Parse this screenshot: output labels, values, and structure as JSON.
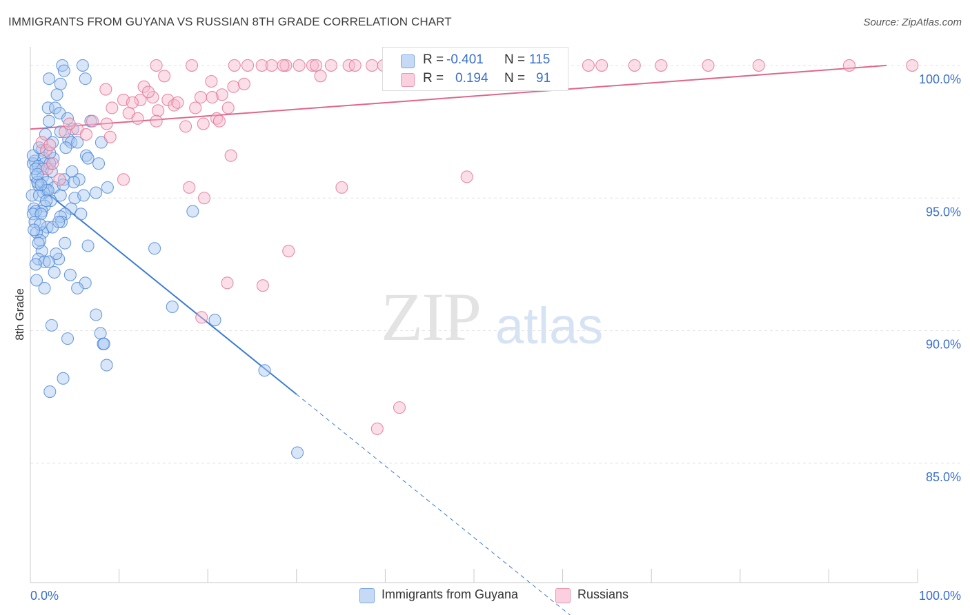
{
  "header": {
    "title": "IMMIGRANTS FROM GUYANA VS RUSSIAN 8TH GRADE CORRELATION CHART",
    "source": "Source: ZipAtlas.com"
  },
  "watermark": {
    "zip": "ZIP",
    "atlas": "atlas"
  },
  "legend": {
    "rows": [
      {
        "r_label": "R =",
        "r_value": "-0.401",
        "n_label": "N =",
        "n_value": "115",
        "color": "#a9c8f0"
      },
      {
        "r_label": "R =",
        "r_value": "0.194",
        "n_label": "N =",
        "n_value": "91",
        "color": "#f7b8cc"
      }
    ]
  },
  "chart_data": {
    "type": "scatter",
    "title": "IMMIGRANTS FROM GUYANA VS RUSSIAN 8TH GRADE CORRELATION CHART",
    "xlabel": "",
    "ylabel": "8th Grade",
    "xlim": [
      0,
      100
    ],
    "ylim": [
      80.5,
      100.7
    ],
    "x_tick_labels": [
      "0.0%",
      "100.0%"
    ],
    "y_ticks": [
      100,
      95,
      90,
      85
    ],
    "y_tick_labels": [
      "100.0%",
      "95.0%",
      "90.0%",
      "85.0%"
    ],
    "grid": true,
    "legend_position": "top-center",
    "series": [
      {
        "name": "Immigrants from Guyana",
        "color": "#4a86d8",
        "fill": "#a9c8f0",
        "trend": {
          "x_start": 0,
          "y_start": 95.7,
          "x_solid_end": 30,
          "x_dash_end": 65
        },
        "points": [
          [
            3.6,
            100
          ],
          [
            5.9,
            100
          ],
          [
            3.8,
            99.8
          ],
          [
            6.2,
            99.5
          ],
          [
            2.1,
            99.5
          ],
          [
            3.4,
            99.3
          ],
          [
            2.0,
            98.4
          ],
          [
            3.0,
            98.9
          ],
          [
            2.8,
            98.4
          ],
          [
            3.3,
            98.2
          ],
          [
            4.2,
            98.0
          ],
          [
            2.1,
            97.9
          ],
          [
            6.8,
            97.9
          ],
          [
            4.8,
            97.6
          ],
          [
            3.4,
            97.5
          ],
          [
            1.7,
            97.4
          ],
          [
            4.3,
            97.2
          ],
          [
            2.5,
            97.1
          ],
          [
            4.6,
            97.1
          ],
          [
            5.3,
            97.1
          ],
          [
            8.0,
            97.1
          ],
          [
            1.3,
            96.8
          ],
          [
            6.3,
            96.6
          ],
          [
            6.5,
            96.5
          ],
          [
            1.5,
            96.5
          ],
          [
            2.6,
            96.5
          ],
          [
            0.5,
            96.4
          ],
          [
            1.6,
            96.3
          ],
          [
            2.2,
            96.3
          ],
          [
            7.7,
            96.3
          ],
          [
            0.3,
            96.3
          ],
          [
            0.9,
            96.2
          ],
          [
            1.4,
            96.1
          ],
          [
            2.4,
            96.0
          ],
          [
            4.7,
            96.0
          ],
          [
            0.6,
            95.8
          ],
          [
            1.4,
            95.8
          ],
          [
            3.8,
            95.7
          ],
          [
            5.5,
            95.7
          ],
          [
            1.9,
            95.6
          ],
          [
            4.9,
            95.6
          ],
          [
            0.9,
            95.5
          ],
          [
            2.7,
            95.4
          ],
          [
            8.7,
            95.4
          ],
          [
            1.8,
            95.3
          ],
          [
            1.5,
            95.2
          ],
          [
            0.2,
            95.1
          ],
          [
            7.4,
            95.2
          ],
          [
            1.0,
            95.1
          ],
          [
            3.4,
            95.1
          ],
          [
            5.0,
            95.0
          ],
          [
            2.3,
            94.9
          ],
          [
            1.6,
            94.7
          ],
          [
            4.6,
            94.6
          ],
          [
            0.4,
            94.6
          ],
          [
            1.3,
            94.5
          ],
          [
            0.6,
            94.5
          ],
          [
            0.3,
            94.4
          ],
          [
            3.9,
            94.4
          ],
          [
            5.7,
            94.4
          ],
          [
            18.3,
            94.5
          ],
          [
            1.2,
            94.4
          ],
          [
            3.4,
            94.3
          ],
          [
            0.5,
            94.1
          ],
          [
            3.5,
            94.1
          ],
          [
            1.9,
            93.9
          ],
          [
            1.4,
            93.7
          ],
          [
            0.7,
            93.7
          ],
          [
            1.1,
            93.4
          ],
          [
            3.9,
            93.3
          ],
          [
            6.5,
            93.2
          ],
          [
            14.0,
            93.1
          ],
          [
            1.3,
            93.0
          ],
          [
            0.9,
            92.7
          ],
          [
            3.2,
            92.7
          ],
          [
            1.6,
            92.6
          ],
          [
            2.1,
            92.6
          ],
          [
            0.6,
            92.5
          ],
          [
            2.7,
            92.2
          ],
          [
            4.5,
            92.1
          ],
          [
            0.7,
            91.9
          ],
          [
            6.2,
            91.8
          ],
          [
            5.3,
            91.6
          ],
          [
            1.6,
            91.6
          ],
          [
            16.0,
            90.9
          ],
          [
            7.4,
            90.6
          ],
          [
            20.8,
            90.4
          ],
          [
            2.4,
            90.2
          ],
          [
            7.9,
            89.9
          ],
          [
            4.2,
            89.7
          ],
          [
            8.2,
            89.5
          ],
          [
            8.3,
            89.5
          ],
          [
            8.6,
            88.7
          ],
          [
            26.4,
            88.5
          ],
          [
            3.7,
            88.2
          ],
          [
            2.2,
            87.7
          ],
          [
            30.1,
            85.4
          ],
          [
            0.3,
            96.6
          ],
          [
            0.8,
            95.6
          ],
          [
            2.0,
            95.3
          ],
          [
            1.1,
            94.0
          ],
          [
            0.4,
            93.8
          ],
          [
            2.9,
            92.9
          ],
          [
            3.7,
            95.5
          ],
          [
            1.8,
            94.9
          ],
          [
            0.6,
            96.1
          ],
          [
            1.0,
            96.9
          ],
          [
            2.5,
            93.9
          ],
          [
            0.8,
            95.9
          ],
          [
            4.0,
            96.9
          ],
          [
            6.0,
            95.1
          ],
          [
            3.2,
            94.1
          ],
          [
            1.2,
            95.5
          ],
          [
            0.9,
            93.3
          ],
          [
            2.2,
            96.7
          ]
        ]
      },
      {
        "name": "Russians",
        "color": "#e2708f",
        "fill": "#f7b8cc",
        "trend": {
          "x_start": 0,
          "y_start": 97.6,
          "x_end": 96.5,
          "y_end": 100
        },
        "points": [
          [
            14.2,
            100
          ],
          [
            18.2,
            100
          ],
          [
            23.0,
            100
          ],
          [
            26.1,
            100
          ],
          [
            28.8,
            100
          ],
          [
            30.3,
            100
          ],
          [
            31.8,
            100
          ],
          [
            33.9,
            100
          ],
          [
            35.9,
            100
          ],
          [
            38.5,
            100
          ],
          [
            39.8,
            100
          ],
          [
            40.5,
            100
          ],
          [
            41.8,
            100
          ],
          [
            43.1,
            100
          ],
          [
            45.8,
            100
          ],
          [
            47.2,
            100
          ],
          [
            49.4,
            100
          ],
          [
            51.0,
            100
          ],
          [
            55.1,
            100
          ],
          [
            57.0,
            100
          ],
          [
            59.8,
            100
          ],
          [
            62.9,
            100
          ],
          [
            68.1,
            100
          ],
          [
            71.1,
            100
          ],
          [
            76.4,
            100
          ],
          [
            82.1,
            100
          ],
          [
            92.3,
            100
          ],
          [
            99.4,
            100
          ],
          [
            24.5,
            100
          ],
          [
            27.2,
            100
          ],
          [
            32.2,
            100
          ],
          [
            36.6,
            100
          ],
          [
            43.6,
            100
          ],
          [
            53.1,
            100
          ],
          [
            64.4,
            100
          ],
          [
            15.1,
            99.6
          ],
          [
            32.7,
            99.6
          ],
          [
            20.4,
            99.4
          ],
          [
            12.8,
            99.2
          ],
          [
            22.9,
            99.2
          ],
          [
            21.6,
            98.9
          ],
          [
            19.2,
            98.8
          ],
          [
            20.5,
            98.8
          ],
          [
            13.8,
            98.8
          ],
          [
            10.5,
            98.7
          ],
          [
            12.4,
            98.7
          ],
          [
            15.5,
            98.7
          ],
          [
            11.5,
            98.6
          ],
          [
            16.2,
            98.5
          ],
          [
            9.2,
            98.4
          ],
          [
            18.6,
            98.4
          ],
          [
            14.4,
            98.3
          ],
          [
            22.3,
            98.4
          ],
          [
            11.1,
            98.2
          ],
          [
            14.2,
            97.9
          ],
          [
            12.1,
            98.0
          ],
          [
            7.0,
            97.9
          ],
          [
            8.6,
            97.8
          ],
          [
            19.5,
            97.8
          ],
          [
            17.5,
            97.7
          ],
          [
            21.0,
            98.0
          ],
          [
            21.3,
            97.9
          ],
          [
            5.3,
            97.6
          ],
          [
            6.3,
            97.4
          ],
          [
            3.9,
            97.5
          ],
          [
            9.0,
            97.3
          ],
          [
            1.3,
            97.1
          ],
          [
            1.8,
            96.8
          ],
          [
            22.6,
            96.6
          ],
          [
            1.9,
            96.1
          ],
          [
            2.5,
            96.3
          ],
          [
            3.3,
            95.7
          ],
          [
            10.5,
            95.7
          ],
          [
            17.9,
            95.4
          ],
          [
            35.1,
            95.4
          ],
          [
            49.2,
            95.8
          ],
          [
            19.6,
            95.0
          ],
          [
            29.1,
            93.0
          ],
          [
            22.2,
            91.8
          ],
          [
            26.2,
            91.7
          ],
          [
            19.3,
            90.5
          ],
          [
            41.6,
            87.1
          ],
          [
            39.1,
            86.3
          ],
          [
            2.2,
            97.0
          ],
          [
            4.4,
            97.8
          ],
          [
            16.6,
            98.6
          ],
          [
            24.1,
            99.3
          ],
          [
            28.5,
            100
          ],
          [
            46.3,
            99.7
          ],
          [
            8.5,
            99.1
          ],
          [
            13.3,
            99.0
          ]
        ]
      }
    ]
  }
}
